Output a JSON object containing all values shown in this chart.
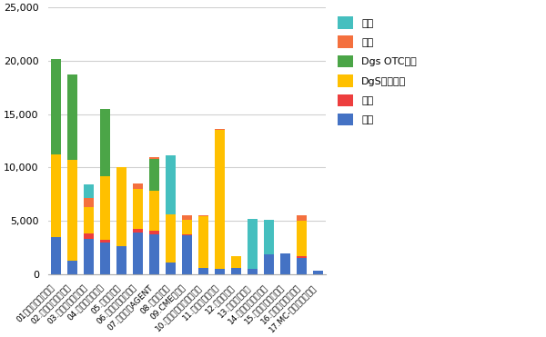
{
  "categories": [
    "01セルワーク薬剤師",
    "02.ヤクマッチ薬剤師",
    "03.ファルマスタッフ",
    "04.マイナビ薬剤師",
    "05.ヤクジョブ",
    "06.アポプラス薬剤師",
    "07.薬キャリAGENT",
    "08.ファゲット",
    "09.CME薬剤師",
    "10.アプロド・ドットコム",
    "11.リクナビ薬剤師",
    "12.お仕事ラボ",
    "13.ファルメイト",
    "14.薬剤師ベストキャ",
    "15.ジョブデポ薬剤師",
    "16.病院薬剤師ドット",
    "17.MC-ファーマネット"
  ],
  "series": {
    "病院": [
      3500,
      1300,
      3300,
      3000,
      2600,
      3900,
      3700,
      1100,
      3600,
      600,
      500,
      600,
      500,
      1850,
      1950,
      1500,
      350
    ],
    "調剤": [
      0,
      0,
      500,
      200,
      0,
      300,
      400,
      0,
      100,
      0,
      0,
      0,
      0,
      0,
      0,
      200,
      0
    ],
    "DgS調剤併設": [
      7700,
      9400,
      2500,
      6000,
      7400,
      3800,
      3700,
      4500,
      1400,
      4800,
      13000,
      1100,
      0,
      0,
      0,
      3300,
      0
    ],
    "Dgs OTCのみ": [
      9000,
      8000,
      0,
      6300,
      0,
      0,
      3000,
      0,
      0,
      0,
      0,
      0,
      0,
      0,
      0,
      0,
      0
    ],
    "企業": [
      0,
      0,
      800,
      0,
      0,
      500,
      200,
      0,
      400,
      150,
      100,
      0,
      0,
      0,
      0,
      500,
      0
    ],
    "派遣": [
      0,
      0,
      1300,
      0,
      0,
      0,
      0,
      5500,
      0,
      0,
      0,
      0,
      4700,
      3200,
      0,
      0,
      0
    ]
  },
  "colors": {
    "病院": "#4472c4",
    "調剤": "#ed3e3e",
    "DgS調剤併設": "#ffc000",
    "Dgs OTCのみ": "#4ba547",
    "企業": "#f4703e",
    "派遣": "#45bfbf"
  },
  "ylim": [
    0,
    25000
  ],
  "yticks": [
    0,
    5000,
    10000,
    15000,
    20000,
    25000
  ],
  "legend_order": [
    "派遣",
    "企業",
    "Dgs OTCのみ",
    "DgS調剤併設",
    "調剤",
    "病院"
  ],
  "draw_order": [
    "病院",
    "調剤",
    "DgS調剤併設",
    "Dgs OTCのみ",
    "企業",
    "派遣"
  ],
  "bar_width": 0.6,
  "figsize": [
    6.0,
    3.71
  ],
  "dpi": 100,
  "xtick_fontsize": 6.5,
  "ytick_fontsize": 8,
  "legend_fontsize": 8
}
